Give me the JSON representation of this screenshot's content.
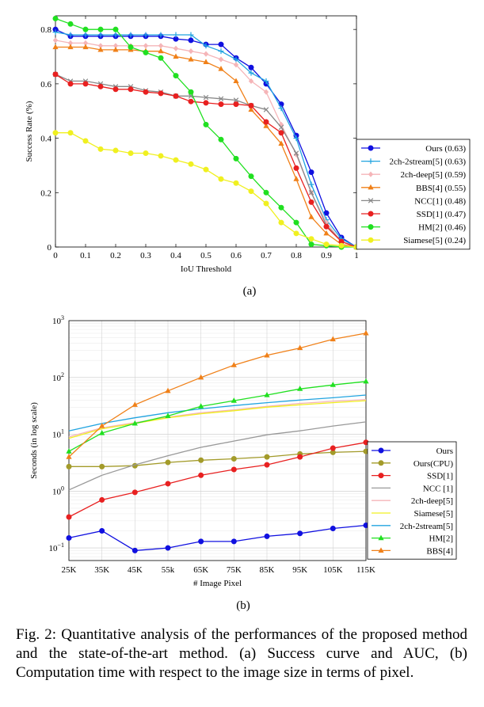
{
  "chart_data": [
    {
      "type": "line",
      "title": "",
      "sublabel": "(a)",
      "xlabel": "IoU Threshold",
      "ylabel": "Success Rate (%)",
      "xlim": [
        0,
        1
      ],
      "ylim": [
        0,
        0.85
      ],
      "grid": false,
      "legend_position": "bottom-right",
      "x_ticks": [
        "0",
        "0.1",
        "0.2",
        "0.3",
        "0.4",
        "0.5",
        "0.6",
        "0.7",
        "0.8",
        "0.9",
        "1"
      ],
      "y_ticks": [
        "0",
        "0.2",
        "0.4",
        "0.6",
        "0.8"
      ],
      "x": [
        0,
        0.05,
        0.1,
        0.15,
        0.2,
        0.25,
        0.3,
        0.35,
        0.4,
        0.45,
        0.5,
        0.55,
        0.6,
        0.65,
        0.7,
        0.75,
        0.8,
        0.85,
        0.9,
        0.95,
        1.0
      ],
      "series": [
        {
          "name": "Ours (0.63)",
          "color": "#1010e0",
          "marker": "circle",
          "values": [
            0.8,
            0.775,
            0.775,
            0.775,
            0.775,
            0.775,
            0.775,
            0.775,
            0.765,
            0.76,
            0.745,
            0.745,
            0.695,
            0.66,
            0.6,
            0.525,
            0.41,
            0.275,
            0.125,
            0.035,
            0.0
          ]
        },
        {
          "name": "2ch-2stream[5] (0.63)",
          "color": "#22a4e0",
          "marker": "plus",
          "values": [
            0.79,
            0.78,
            0.78,
            0.78,
            0.78,
            0.78,
            0.78,
            0.78,
            0.78,
            0.78,
            0.74,
            0.72,
            0.69,
            0.64,
            0.61,
            0.51,
            0.4,
            0.23,
            0.1,
            0.03,
            0.0
          ]
        },
        {
          "name": "2ch-deep[5] (0.59)",
          "color": "#f5b5b8",
          "marker": "diamond",
          "values": [
            0.76,
            0.75,
            0.75,
            0.74,
            0.74,
            0.74,
            0.74,
            0.74,
            0.73,
            0.72,
            0.71,
            0.69,
            0.67,
            0.61,
            0.57,
            0.45,
            0.34,
            0.2,
            0.09,
            0.02,
            0.0
          ]
        },
        {
          "name": "BBS[4] (0.55)",
          "color": "#f08018",
          "marker": "triangle",
          "values": [
            0.735,
            0.735,
            0.735,
            0.725,
            0.725,
            0.725,
            0.72,
            0.72,
            0.7,
            0.69,
            0.68,
            0.655,
            0.61,
            0.505,
            0.445,
            0.38,
            0.25,
            0.11,
            0.05,
            0.01,
            0.0
          ]
        },
        {
          "name": "NCC[1] (0.48)",
          "color": "#888888",
          "marker": "x",
          "values": [
            0.635,
            0.61,
            0.61,
            0.6,
            0.59,
            0.59,
            0.575,
            0.57,
            0.555,
            0.555,
            0.55,
            0.545,
            0.54,
            0.52,
            0.505,
            0.44,
            0.345,
            0.2,
            0.08,
            0.02,
            0.0
          ]
        },
        {
          "name": "SSD[1] (0.47)",
          "color": "#e82020",
          "marker": "circle",
          "values": [
            0.635,
            0.6,
            0.6,
            0.59,
            0.58,
            0.58,
            0.57,
            0.565,
            0.555,
            0.535,
            0.53,
            0.525,
            0.525,
            0.52,
            0.46,
            0.42,
            0.29,
            0.165,
            0.075,
            0.02,
            0.0
          ]
        },
        {
          "name": "HM[2] (0.46)",
          "color": "#20e020",
          "marker": "circle",
          "values": [
            0.84,
            0.82,
            0.8,
            0.8,
            0.8,
            0.735,
            0.715,
            0.695,
            0.63,
            0.57,
            0.45,
            0.395,
            0.325,
            0.26,
            0.2,
            0.145,
            0.09,
            0.01,
            0.005,
            0.0,
            0.0
          ]
        },
        {
          "name": "Siamese[5] (0.24)",
          "color": "#f0f020",
          "marker": "circle",
          "values": [
            0.42,
            0.42,
            0.39,
            0.36,
            0.355,
            0.345,
            0.345,
            0.335,
            0.32,
            0.305,
            0.285,
            0.25,
            0.235,
            0.205,
            0.16,
            0.09,
            0.05,
            0.03,
            0.01,
            0.005,
            0.0
          ]
        }
      ]
    },
    {
      "type": "line",
      "title": "",
      "sublabel": "(b)",
      "xlabel": "# Image Pixel",
      "ylabel": "Seconds (in log scale)",
      "yscale": "log",
      "ylim": [
        0.06,
        1000
      ],
      "grid": true,
      "legend_position": "bottom-right",
      "categories": [
        "25K",
        "35K",
        "45K",
        "55k",
        "65K",
        "75K",
        "85K",
        "95K",
        "105K",
        "115K"
      ],
      "y_tick_bases": [
        "10",
        "10",
        "10",
        "10",
        "10"
      ],
      "y_tick_exps": [
        "−1",
        "0",
        "1",
        "2",
        "3"
      ],
      "series": [
        {
          "name": "Ours",
          "color": "#1010e0",
          "marker": "circle",
          "values": [
            0.15,
            0.2,
            0.09,
            0.1,
            0.13,
            0.13,
            0.16,
            0.18,
            0.22,
            0.25
          ]
        },
        {
          "name": "Ours(CPU)",
          "color": "#a39b2a",
          "marker": "circle",
          "values": [
            2.7,
            2.7,
            2.8,
            3.2,
            3.5,
            3.7,
            4.0,
            4.5,
            4.8,
            5.0
          ]
        },
        {
          "name": "SSD[1]",
          "color": "#e82020",
          "marker": "circle",
          "values": [
            0.35,
            0.7,
            0.95,
            1.35,
            1.9,
            2.4,
            2.9,
            4.0,
            5.7,
            7.2
          ]
        },
        {
          "name": "NCC [1]",
          "color": "#999999",
          "marker": "none",
          "values": [
            1.05,
            1.9,
            2.9,
            4.2,
            5.9,
            7.6,
            9.8,
            11.5,
            14.0,
            16.5
          ]
        },
        {
          "name": "2ch-deep[5]",
          "color": "#f5b5b8",
          "marker": "none",
          "values": [
            9.0,
            13.0,
            16.0,
            20.0,
            24.0,
            27.0,
            31.0,
            35.0,
            38.0,
            41.0
          ]
        },
        {
          "name": "Siamese[5]",
          "color": "#f0f020",
          "marker": "none",
          "values": [
            8.5,
            12.5,
            15.5,
            19.5,
            23.0,
            26.0,
            30.0,
            33.0,
            36.0,
            39.0
          ]
        },
        {
          "name": "2ch-2stream[5]",
          "color": "#22a4e0",
          "marker": "none",
          "values": [
            11.5,
            15.5,
            19.5,
            24.0,
            28.0,
            32.0,
            36.0,
            40.0,
            44.0,
            49.0
          ]
        },
        {
          "name": "HM[2]",
          "color": "#20e020",
          "marker": "triangle",
          "values": [
            5.0,
            10.5,
            15.5,
            21.0,
            31.0,
            39.0,
            49.0,
            63.0,
            74.0,
            85.0
          ]
        },
        {
          "name": "BBS[4]",
          "color": "#f08018",
          "marker": "triangle",
          "values": [
            4.0,
            14.0,
            33.0,
            58.0,
            100.0,
            165.0,
            245.0,
            330.0,
            470.0,
            600.0
          ]
        }
      ]
    }
  ],
  "caption": "Fig. 2: Quantitative analysis of the performances of the proposed method and the state-of-the-art method. (a) Success curve and AUC, (b) Computation time with respect to the image size in terms of pixel."
}
